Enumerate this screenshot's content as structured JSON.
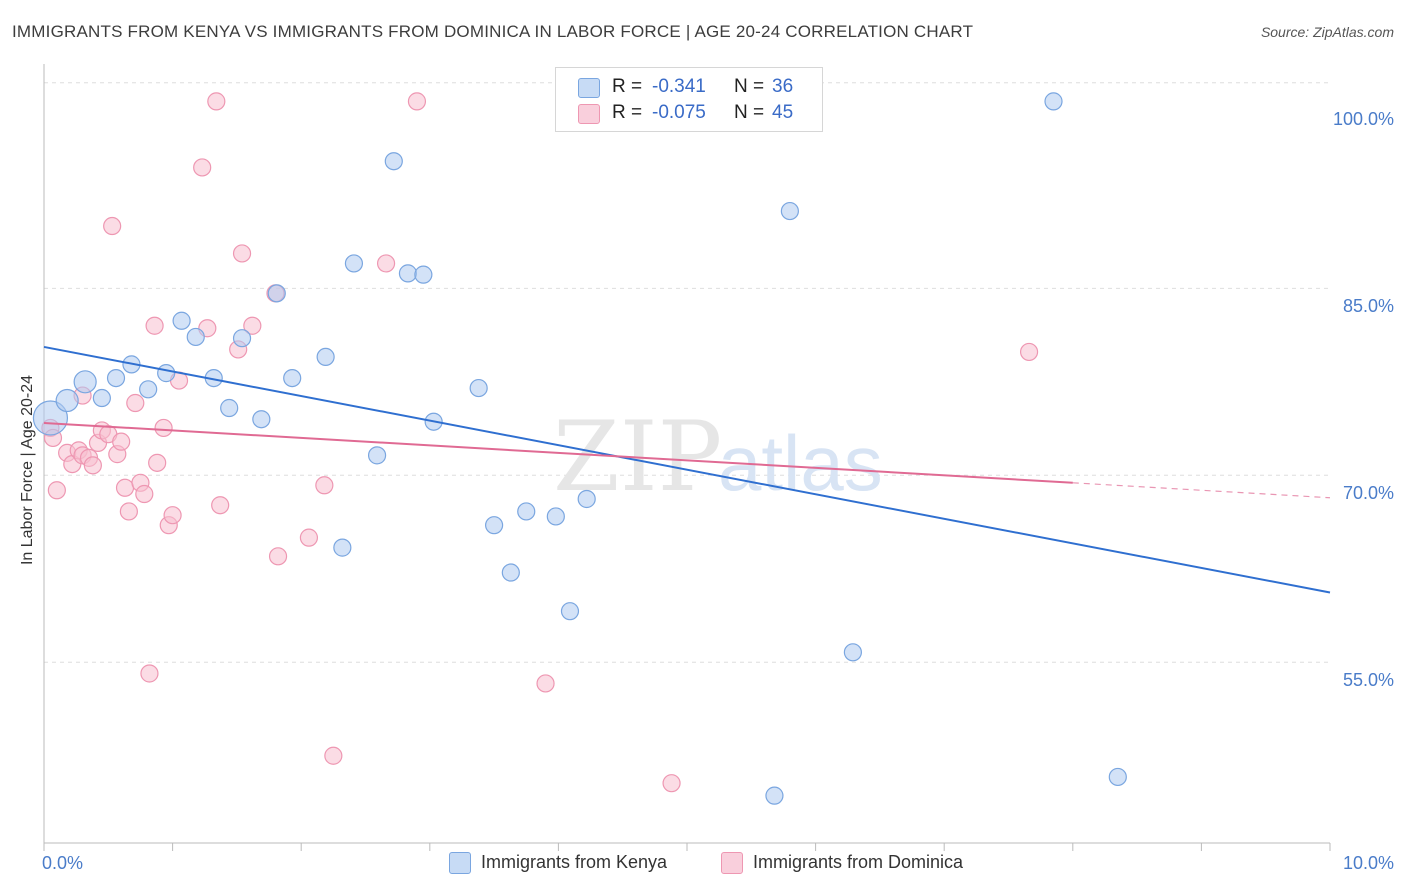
{
  "title": "IMMIGRANTS FROM KENYA VS IMMIGRANTS FROM DOMINICA IN LABOR FORCE | AGE 20-24 CORRELATION CHART",
  "source": "Source: ZipAtlas.com",
  "watermark": {
    "zip": "ZIP",
    "atlas": "atlas"
  },
  "colors": {
    "kenya_fill": "#aecbf0",
    "kenya_stroke": "#7aa6e0",
    "kenya_line": "#2f6fd0",
    "dominica_fill": "#f7bfd0",
    "dominica_stroke": "#ee97b2",
    "dominica_line": "#e06a93",
    "grid": "#dedede",
    "tick_label": "#4a7cc9"
  },
  "stats": {
    "kenya": {
      "r_label": "R =",
      "r_value": "-0.341",
      "n_label": "N =",
      "n_value": "36"
    },
    "dominica": {
      "r_label": "R =",
      "r_value": "-0.075",
      "n_label": "N =",
      "n_value": "45"
    }
  },
  "legend": {
    "kenya": "Immigrants from Kenya",
    "dominica": "Immigrants from Dominica"
  },
  "chart_data": {
    "type": "scatter",
    "title": "IMMIGRANTS FROM KENYA VS IMMIGRANTS FROM DOMINICA IN LABOR FORCE | AGE 20-24 CORRELATION CHART",
    "xlabel": "",
    "ylabel": "In Labor Force | Age 20-24",
    "xlim": [
      0,
      10
    ],
    "ylim": [
      40.5,
      103
    ],
    "x_tick_labels": [
      {
        "value": 0,
        "label": "0.0%"
      },
      {
        "value": 10,
        "label": "10.0%"
      }
    ],
    "y_tick_labels": [
      {
        "value": 100,
        "label": "100.0%"
      },
      {
        "value": 85,
        "label": "85.0%"
      },
      {
        "value": 70,
        "label": "70.0%"
      },
      {
        "value": 55,
        "label": "55.0%"
      }
    ],
    "gridlines_y": [
      55,
      70,
      85,
      101.5
    ],
    "legend_position": "bottom-center",
    "series": [
      {
        "name": "Immigrants from Kenya",
        "points": [
          {
            "x": 0.05,
            "y": 74.6,
            "size": "large"
          },
          {
            "x": 0.18,
            "y": 76.0,
            "size": "medium"
          },
          {
            "x": 0.32,
            "y": 77.5,
            "size": "medium"
          },
          {
            "x": 0.45,
            "y": 76.2
          },
          {
            "x": 0.56,
            "y": 77.8
          },
          {
            "x": 0.68,
            "y": 78.9
          },
          {
            "x": 0.81,
            "y": 76.9
          },
          {
            "x": 0.95,
            "y": 78.2
          },
          {
            "x": 1.07,
            "y": 82.4
          },
          {
            "x": 1.18,
            "y": 81.1
          },
          {
            "x": 1.32,
            "y": 77.8
          },
          {
            "x": 1.44,
            "y": 75.4
          },
          {
            "x": 1.54,
            "y": 81.0
          },
          {
            "x": 1.69,
            "y": 74.5
          },
          {
            "x": 1.81,
            "y": 84.6
          },
          {
            "x": 1.93,
            "y": 77.8
          },
          {
            "x": 2.19,
            "y": 79.5
          },
          {
            "x": 2.32,
            "y": 64.2
          },
          {
            "x": 2.41,
            "y": 87.0
          },
          {
            "x": 2.59,
            "y": 71.6
          },
          {
            "x": 2.72,
            "y": 95.2
          },
          {
            "x": 2.83,
            "y": 86.2
          },
          {
            "x": 2.95,
            "y": 86.1
          },
          {
            "x": 3.03,
            "y": 74.3
          },
          {
            "x": 3.38,
            "y": 77.0
          },
          {
            "x": 3.5,
            "y": 66.0
          },
          {
            "x": 3.63,
            "y": 62.2
          },
          {
            "x": 3.75,
            "y": 67.1
          },
          {
            "x": 3.98,
            "y": 66.7
          },
          {
            "x": 4.09,
            "y": 59.1
          },
          {
            "x": 4.22,
            "y": 68.1
          },
          {
            "x": 5.68,
            "y": 44.3
          },
          {
            "x": 5.8,
            "y": 91.2
          },
          {
            "x": 6.29,
            "y": 55.8
          },
          {
            "x": 7.85,
            "y": 100.0
          },
          {
            "x": 8.35,
            "y": 45.8
          }
        ]
      },
      {
        "name": "Immigrants from Dominica",
        "points": [
          {
            "x": 0.05,
            "y": 73.8
          },
          {
            "x": 0.07,
            "y": 73.0
          },
          {
            "x": 0.1,
            "y": 68.8
          },
          {
            "x": 0.18,
            "y": 71.8
          },
          {
            "x": 0.22,
            "y": 70.9
          },
          {
            "x": 0.27,
            "y": 72.0
          },
          {
            "x": 0.3,
            "y": 71.6
          },
          {
            "x": 0.3,
            "y": 76.4
          },
          {
            "x": 0.35,
            "y": 71.4
          },
          {
            "x": 0.38,
            "y": 70.8
          },
          {
            "x": 0.42,
            "y": 72.6
          },
          {
            "x": 0.45,
            "y": 73.6
          },
          {
            "x": 0.5,
            "y": 73.3
          },
          {
            "x": 0.53,
            "y": 90.0
          },
          {
            "x": 0.57,
            "y": 71.7
          },
          {
            "x": 0.6,
            "y": 72.7
          },
          {
            "x": 0.63,
            "y": 69.0
          },
          {
            "x": 0.66,
            "y": 67.1
          },
          {
            "x": 0.71,
            "y": 75.8
          },
          {
            "x": 0.75,
            "y": 69.4
          },
          {
            "x": 0.78,
            "y": 68.5
          },
          {
            "x": 0.82,
            "y": 54.1
          },
          {
            "x": 0.86,
            "y": 82.0
          },
          {
            "x": 0.88,
            "y": 71.0
          },
          {
            "x": 0.93,
            "y": 73.8
          },
          {
            "x": 0.97,
            "y": 66.0
          },
          {
            "x": 1.0,
            "y": 66.8
          },
          {
            "x": 1.05,
            "y": 77.6
          },
          {
            "x": 1.23,
            "y": 94.7
          },
          {
            "x": 1.27,
            "y": 81.8
          },
          {
            "x": 1.34,
            "y": 100.0
          },
          {
            "x": 1.37,
            "y": 67.6
          },
          {
            "x": 1.51,
            "y": 80.1
          },
          {
            "x": 1.54,
            "y": 87.8
          },
          {
            "x": 1.62,
            "y": 82.0
          },
          {
            "x": 1.8,
            "y": 84.6
          },
          {
            "x": 1.82,
            "y": 63.5
          },
          {
            "x": 2.06,
            "y": 65.0
          },
          {
            "x": 2.18,
            "y": 69.2
          },
          {
            "x": 2.25,
            "y": 47.5
          },
          {
            "x": 2.66,
            "y": 87.0
          },
          {
            "x": 2.9,
            "y": 100.0
          },
          {
            "x": 3.9,
            "y": 53.3
          },
          {
            "x": 4.88,
            "y": 45.3
          },
          {
            "x": 7.66,
            "y": 79.9
          }
        ]
      }
    ],
    "trend_lines": [
      {
        "series": "Immigrants from Kenya",
        "x": [
          0,
          10
        ],
        "y": [
          80.3,
          60.6
        ]
      },
      {
        "series": "Immigrants from Dominica",
        "x": [
          0,
          8.0
        ],
        "y": [
          74.2,
          69.4
        ],
        "dashed_extension": {
          "x": [
            8.0,
            10
          ],
          "y": [
            69.4,
            68.2
          ]
        }
      }
    ]
  }
}
